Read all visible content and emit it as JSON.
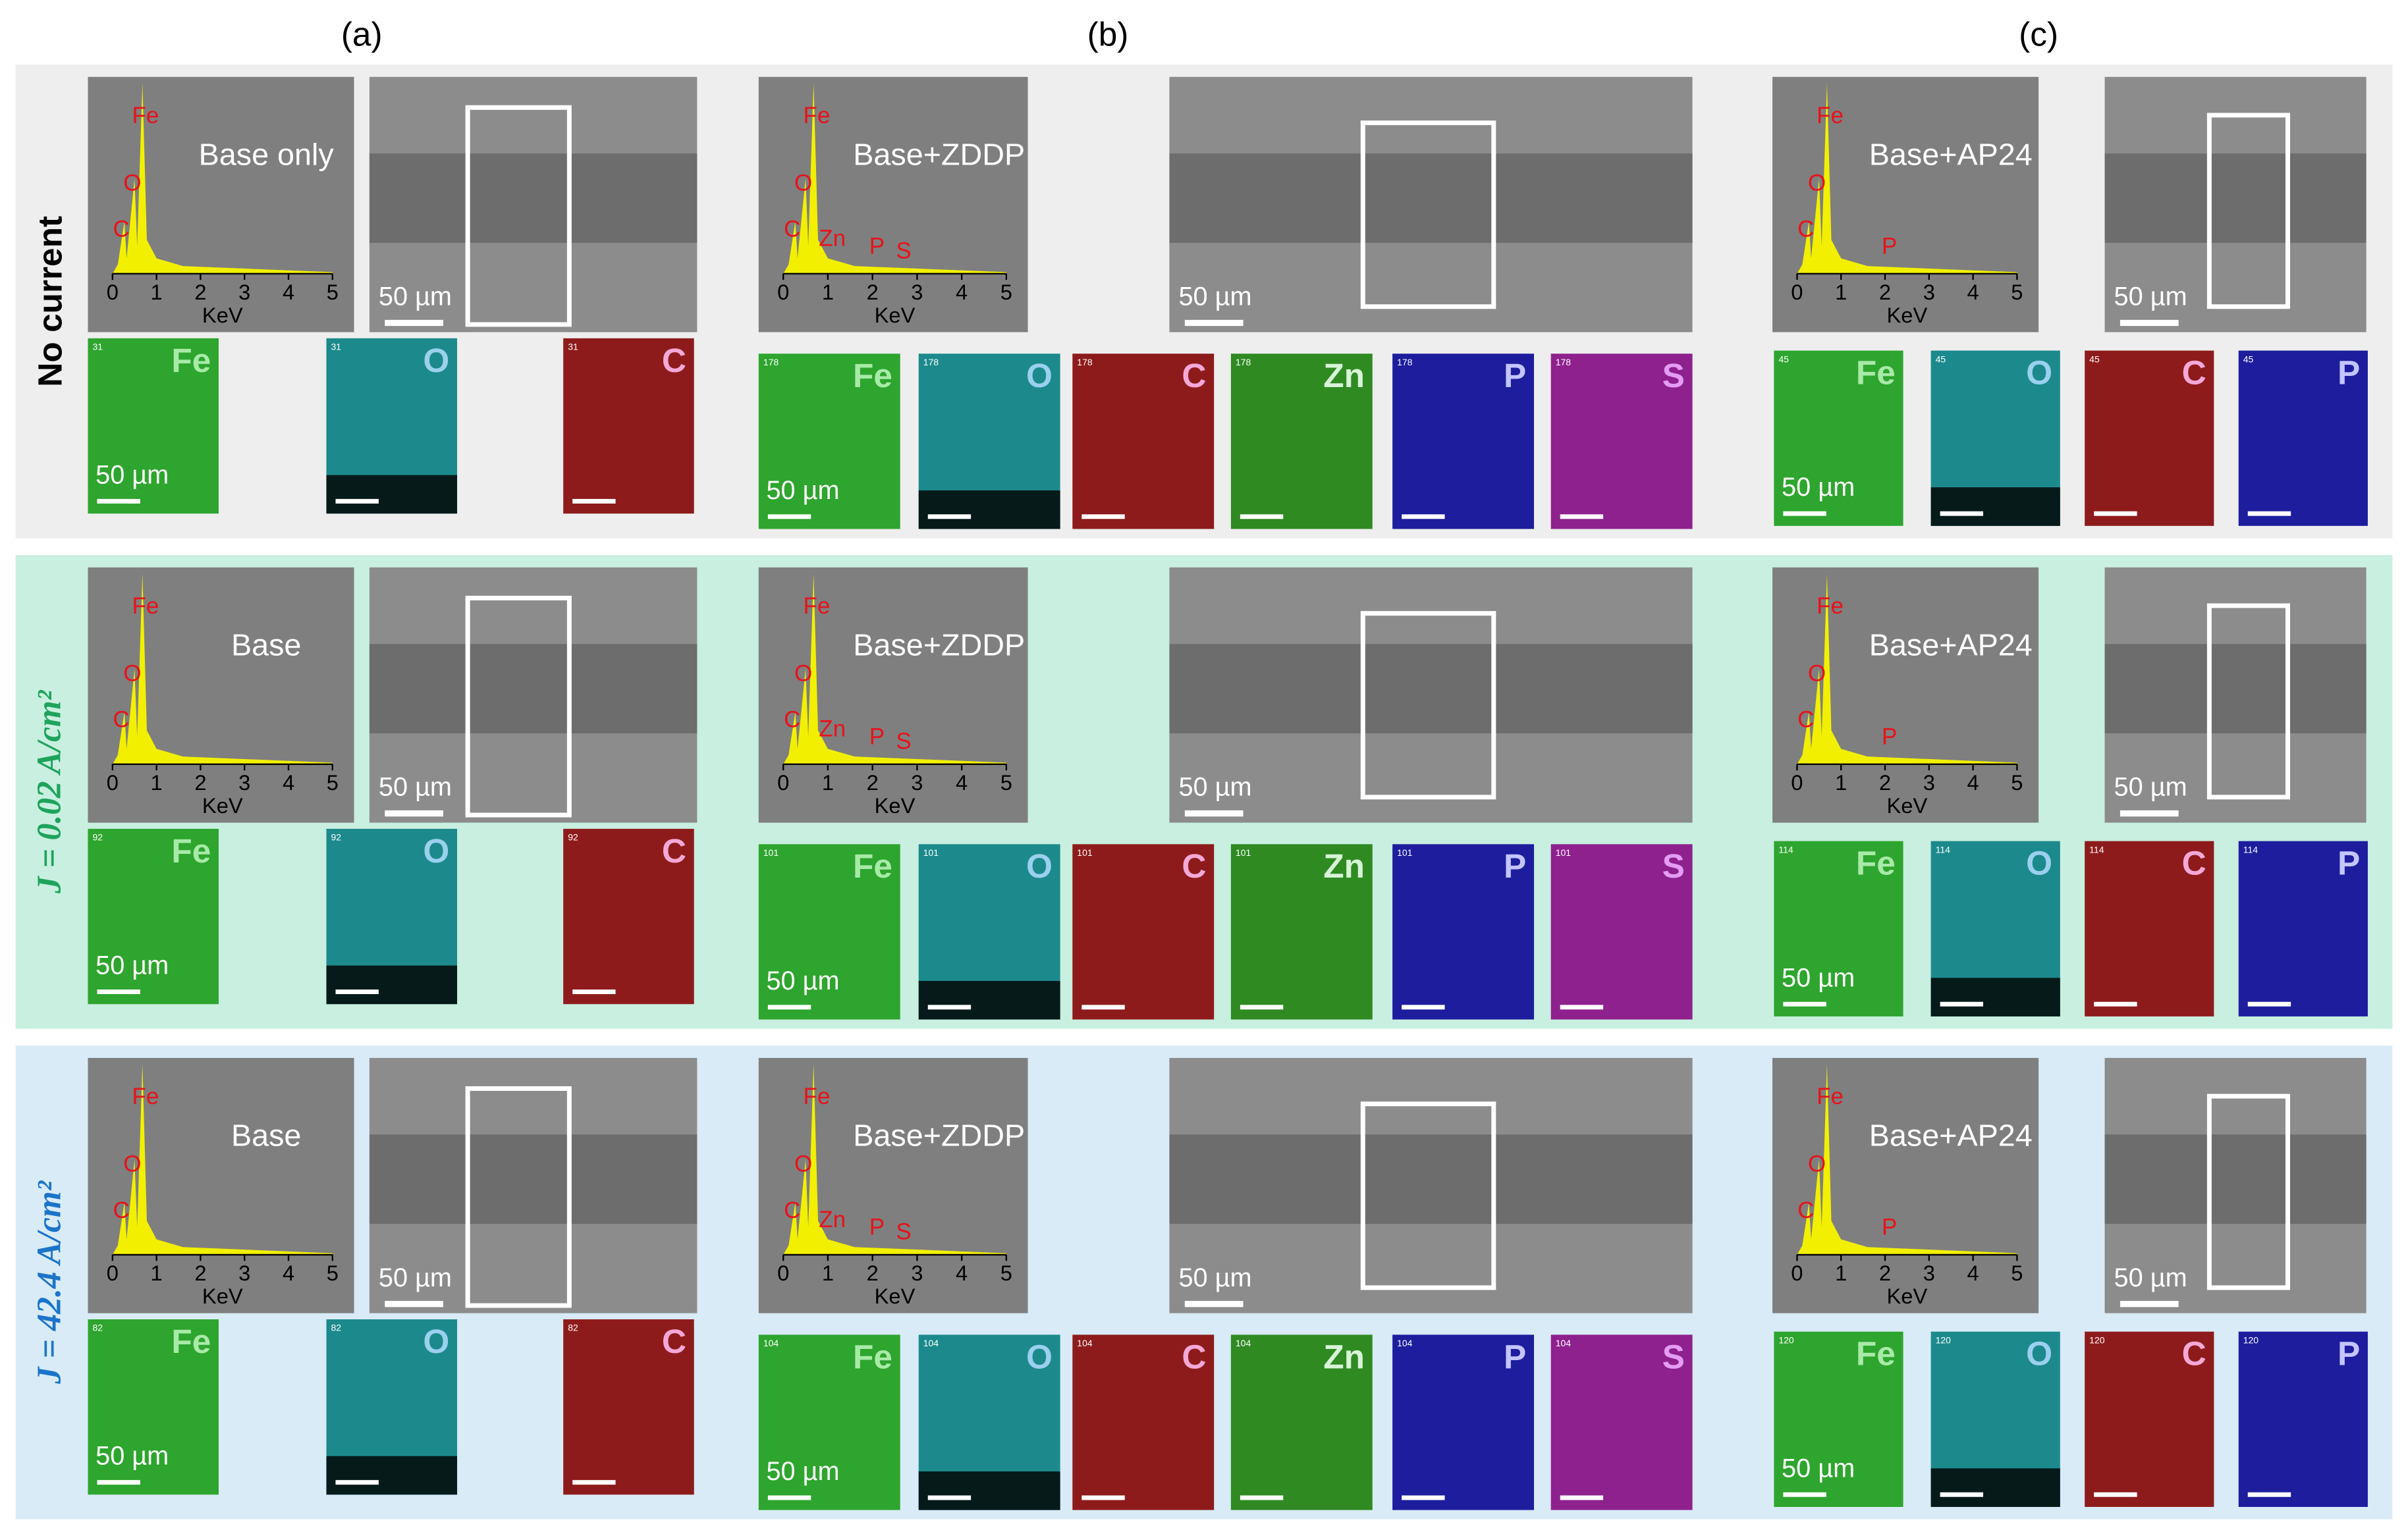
{
  "columns": [
    "(a)",
    "(b)",
    "(c)"
  ],
  "spectrum": {
    "xticks": [
      0,
      1,
      2,
      3,
      4,
      5
    ],
    "xlabel": "KeV"
  },
  "scale_bar": "50 µm",
  "rows": [
    {
      "label": "No current",
      "panels": [
        {
          "sample": "Base only",
          "peaks": [
            "Fe",
            "O",
            "C"
          ],
          "map_id": "31",
          "maps": [
            "Fe",
            "O",
            "C"
          ]
        },
        {
          "sample": "Base+ZDDP",
          "peaks": [
            "Fe",
            "O",
            "C",
            "Zn",
            "P",
            "S"
          ],
          "map_id": "178",
          "maps": [
            "Fe",
            "O",
            "C",
            "Zn",
            "P",
            "S"
          ]
        },
        {
          "sample": "Base+AP24",
          "peaks": [
            "Fe",
            "O",
            "C",
            "P"
          ],
          "map_id": "45",
          "maps": [
            "Fe",
            "O",
            "C",
            "P"
          ]
        }
      ]
    },
    {
      "label": "J = 0.02 A/cm²",
      "panels": [
        {
          "sample": "Base",
          "peaks": [
            "Fe",
            "O",
            "C"
          ],
          "map_id": "92",
          "maps": [
            "Fe",
            "O",
            "C"
          ]
        },
        {
          "sample": "Base+ZDDP",
          "peaks": [
            "Fe",
            "O",
            "C",
            "Zn",
            "P",
            "S"
          ],
          "map_id": "101",
          "maps": [
            "Fe",
            "O",
            "C",
            "Zn",
            "P",
            "S"
          ]
        },
        {
          "sample": "Base+AP24",
          "peaks": [
            "Fe",
            "O",
            "C",
            "P"
          ],
          "map_id": "114",
          "maps": [
            "Fe",
            "O",
            "C",
            "P"
          ]
        }
      ]
    },
    {
      "label": "J = 42.4 A/cm²",
      "panels": [
        {
          "sample": "Base",
          "peaks": [
            "Fe",
            "O",
            "C"
          ],
          "map_id": "82",
          "maps": [
            "Fe",
            "O",
            "C"
          ]
        },
        {
          "sample": "Base+ZDDP",
          "peaks": [
            "Fe",
            "O",
            "C",
            "Zn",
            "P",
            "S"
          ],
          "map_id": "104",
          "maps": [
            "Fe",
            "O",
            "C",
            "Zn",
            "P",
            "S"
          ]
        },
        {
          "sample": "Base+AP24",
          "peaks": [
            "Fe",
            "O",
            "C",
            "P"
          ],
          "map_id": "120",
          "maps": [
            "Fe",
            "O",
            "C",
            "P"
          ]
        }
      ]
    }
  ]
}
